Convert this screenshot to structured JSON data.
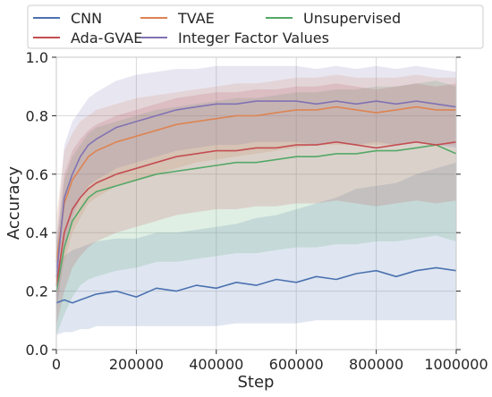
{
  "chart_data": {
    "type": "line",
    "xlabel": "Step",
    "ylabel": "Accuracy",
    "xlim": [
      0,
      1000000
    ],
    "ylim": [
      0,
      1.0
    ],
    "xticks": [
      0,
      200000,
      400000,
      600000,
      800000,
      1000000
    ],
    "xtick_labels": [
      "0",
      "200000",
      "400000",
      "600000",
      "800000",
      "1000000"
    ],
    "yticks": [
      0,
      0.2,
      0.4,
      0.6,
      0.8,
      1.0
    ],
    "ytick_labels": [
      "0.0",
      "0.2",
      "0.4",
      "0.6",
      "0.8",
      "1.0"
    ],
    "grid": true,
    "legend_position": "top",
    "x": [
      0,
      20000,
      40000,
      60000,
      80000,
      100000,
      150000,
      200000,
      250000,
      300000,
      350000,
      400000,
      450000,
      500000,
      550000,
      600000,
      650000,
      700000,
      750000,
      800000,
      850000,
      900000,
      950000,
      1000000
    ],
    "series": [
      {
        "name": "CNN",
        "color": "#4c72b0",
        "values": [
          0.16,
          0.17,
          0.16,
          0.17,
          0.18,
          0.19,
          0.2,
          0.18,
          0.21,
          0.2,
          0.22,
          0.21,
          0.23,
          0.22,
          0.24,
          0.23,
          0.25,
          0.24,
          0.26,
          0.27,
          0.25,
          0.27,
          0.28,
          0.27
        ],
        "lower": [
          0.05,
          0.06,
          0.06,
          0.07,
          0.07,
          0.08,
          0.08,
          0.08,
          0.08,
          0.08,
          0.08,
          0.08,
          0.09,
          0.09,
          0.09,
          0.09,
          0.1,
          0.1,
          0.1,
          0.1,
          0.1,
          0.1,
          0.1,
          0.1
        ],
        "upper": [
          0.3,
          0.32,
          0.34,
          0.35,
          0.36,
          0.37,
          0.38,
          0.38,
          0.4,
          0.4,
          0.41,
          0.42,
          0.43,
          0.45,
          0.46,
          0.48,
          0.5,
          0.52,
          0.55,
          0.56,
          0.57,
          0.6,
          0.62,
          0.64
        ]
      },
      {
        "name": "TVAE",
        "color": "#dd8452",
        "values": [
          0.3,
          0.5,
          0.58,
          0.62,
          0.66,
          0.68,
          0.71,
          0.73,
          0.75,
          0.77,
          0.78,
          0.79,
          0.8,
          0.8,
          0.81,
          0.82,
          0.82,
          0.83,
          0.82,
          0.81,
          0.82,
          0.83,
          0.82,
          0.82
        ],
        "lower": [
          0.15,
          0.3,
          0.4,
          0.45,
          0.5,
          0.52,
          0.56,
          0.58,
          0.6,
          0.62,
          0.64,
          0.65,
          0.66,
          0.67,
          0.68,
          0.69,
          0.7,
          0.7,
          0.7,
          0.7,
          0.7,
          0.71,
          0.7,
          0.7
        ],
        "upper": [
          0.45,
          0.68,
          0.74,
          0.78,
          0.8,
          0.82,
          0.84,
          0.86,
          0.87,
          0.88,
          0.89,
          0.9,
          0.91,
          0.91,
          0.92,
          0.93,
          0.93,
          0.94,
          0.93,
          0.93,
          0.93,
          0.94,
          0.93,
          0.93
        ]
      },
      {
        "name": "Unsupervised",
        "color": "#55a868",
        "values": [
          0.2,
          0.35,
          0.44,
          0.48,
          0.52,
          0.54,
          0.56,
          0.58,
          0.6,
          0.61,
          0.62,
          0.63,
          0.64,
          0.64,
          0.65,
          0.66,
          0.66,
          0.67,
          0.67,
          0.68,
          0.68,
          0.69,
          0.7,
          0.67
        ],
        "lower": [
          0.05,
          0.12,
          0.18,
          0.22,
          0.24,
          0.25,
          0.27,
          0.28,
          0.3,
          0.3,
          0.31,
          0.32,
          0.33,
          0.33,
          0.34,
          0.35,
          0.35,
          0.36,
          0.36,
          0.37,
          0.37,
          0.38,
          0.39,
          0.37
        ],
        "upper": [
          0.35,
          0.58,
          0.66,
          0.7,
          0.74,
          0.76,
          0.78,
          0.8,
          0.82,
          0.83,
          0.84,
          0.85,
          0.86,
          0.86,
          0.87,
          0.88,
          0.88,
          0.89,
          0.89,
          0.9,
          0.9,
          0.91,
          0.92,
          0.9
        ]
      },
      {
        "name": "Ada-GVAE",
        "color": "#c44e52",
        "values": [
          0.22,
          0.4,
          0.48,
          0.52,
          0.55,
          0.57,
          0.6,
          0.62,
          0.64,
          0.66,
          0.67,
          0.68,
          0.68,
          0.69,
          0.69,
          0.7,
          0.7,
          0.71,
          0.7,
          0.69,
          0.7,
          0.71,
          0.7,
          0.71
        ],
        "lower": [
          0.08,
          0.2,
          0.28,
          0.32,
          0.35,
          0.37,
          0.4,
          0.42,
          0.44,
          0.46,
          0.47,
          0.48,
          0.48,
          0.49,
          0.49,
          0.5,
          0.5,
          0.51,
          0.5,
          0.49,
          0.5,
          0.51,
          0.5,
          0.51
        ],
        "upper": [
          0.36,
          0.6,
          0.68,
          0.72,
          0.75,
          0.77,
          0.8,
          0.82,
          0.84,
          0.86,
          0.87,
          0.88,
          0.88,
          0.89,
          0.89,
          0.9,
          0.9,
          0.91,
          0.9,
          0.89,
          0.9,
          0.91,
          0.9,
          0.91
        ]
      },
      {
        "name": "Integer Factor Values",
        "color": "#8172b3",
        "values": [
          0.25,
          0.52,
          0.6,
          0.66,
          0.7,
          0.72,
          0.76,
          0.78,
          0.8,
          0.82,
          0.83,
          0.84,
          0.84,
          0.85,
          0.85,
          0.85,
          0.84,
          0.85,
          0.84,
          0.85,
          0.84,
          0.85,
          0.84,
          0.83
        ],
        "lower": [
          0.12,
          0.35,
          0.45,
          0.52,
          0.56,
          0.58,
          0.62,
          0.64,
          0.66,
          0.68,
          0.69,
          0.7,
          0.7,
          0.71,
          0.71,
          0.71,
          0.7,
          0.71,
          0.7,
          0.71,
          0.7,
          0.71,
          0.7,
          0.69
        ],
        "upper": [
          0.38,
          0.7,
          0.78,
          0.82,
          0.86,
          0.88,
          0.92,
          0.94,
          0.95,
          0.96,
          0.96,
          0.97,
          0.97,
          0.97,
          0.97,
          0.97,
          0.96,
          0.97,
          0.96,
          0.97,
          0.96,
          0.97,
          0.96,
          0.95
        ]
      }
    ]
  }
}
